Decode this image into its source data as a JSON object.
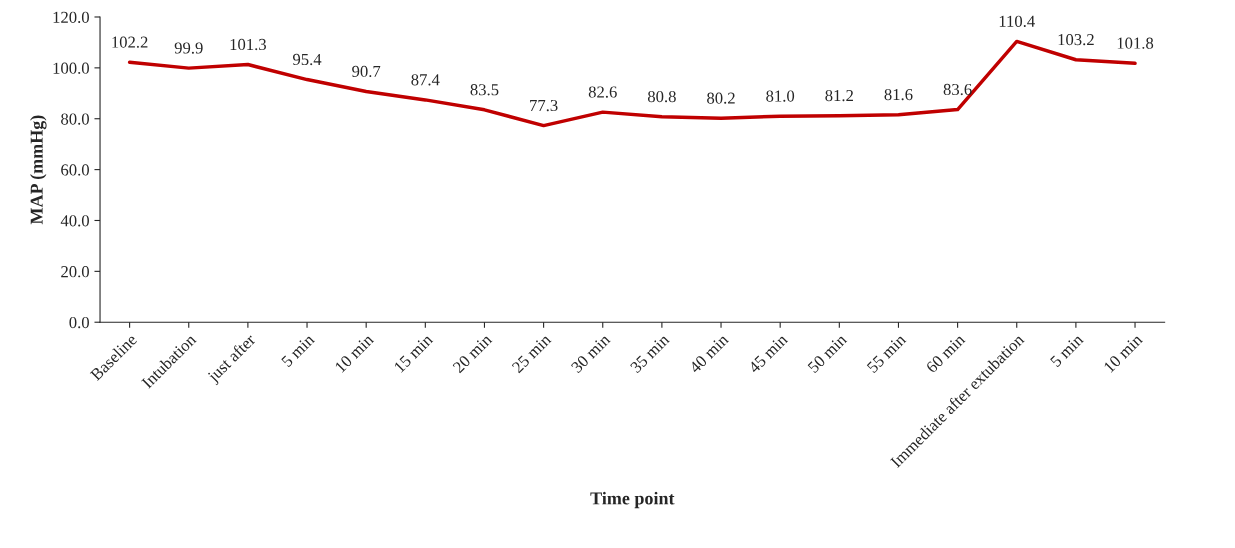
{
  "chart_data": {
    "type": "line",
    "xlabel": "Time point",
    "ylabel": "MAP (mmHg)",
    "categories": [
      "Baseline",
      "Intubation",
      "just after",
      "5 min",
      "10 min",
      "15 min",
      "20 min",
      "25 min",
      "30 min",
      "35 min",
      "40 min",
      "45 min",
      "50 min",
      "55 min",
      "60 min",
      "Immediate after extubation",
      "5 min",
      "10 min"
    ],
    "series": [
      {
        "color": "#c00000",
        "values": [
          102.2,
          99.9,
          101.3,
          95.4,
          90.7,
          87.4,
          83.5,
          77.3,
          82.6,
          80.8,
          80.2,
          81.0,
          81.2,
          81.6,
          83.6,
          110.4,
          103.2,
          101.8
        ],
        "value_labels": [
          "102.2",
          "99.9",
          "101.3",
          "95.4",
          "90.7",
          "87.4",
          "83.5",
          "77.3",
          "82.6",
          "80.8",
          "80.2",
          "81.0",
          "81.2",
          "81.6",
          "83.6",
          "110.4",
          "103.2",
          "101.8"
        ]
      }
    ],
    "ylim": [
      0,
      120
    ],
    "yticks": [
      {
        "value": 0,
        "label": "0.0"
      },
      {
        "value": 20,
        "label": "20.0"
      },
      {
        "value": 40,
        "label": "40.0"
      },
      {
        "value": 60,
        "label": "60.0"
      },
      {
        "value": 80,
        "label": "80.0"
      },
      {
        "value": 100,
        "label": "100.0"
      },
      {
        "value": 120,
        "label": "120.0"
      }
    ],
    "grid": false,
    "legend": false,
    "marker": "none",
    "line_style": "solid"
  }
}
